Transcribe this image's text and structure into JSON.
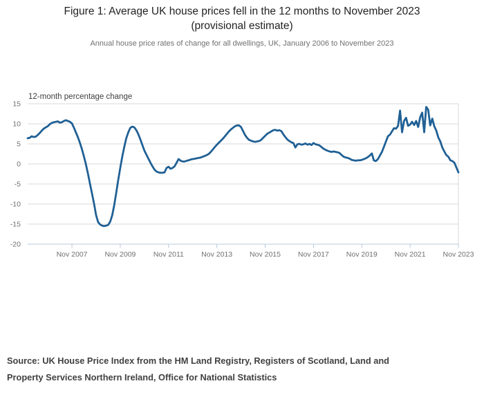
{
  "figure": {
    "title_lines": [
      "Figure 1: Average UK house prices fell in the 12 months to November 2023",
      "(provisional estimate)"
    ],
    "subtitle": "Annual house price rates of change for all dwellings, UK, January 2006 to November 2023",
    "source_lines": [
      "Source: UK House Price Index from the HM Land Registry, Registers of Scotland, Land and",
      "Property Services Northern Ireland, Office for National Statistics"
    ]
  },
  "chart_data": {
    "type": "line",
    "title": "Figure 1: Average UK house prices fell in the 12 months to November 2023 (provisional estimate)",
    "subtitle": "Annual house price rates of change for all dwellings, UK, January 2006 to November 2023",
    "ylabel": "12-month percentage change",
    "xlabel": "",
    "ylim": [
      -20,
      15
    ],
    "yticks": [
      15,
      10,
      5,
      0,
      -5,
      -10,
      -15,
      -20
    ],
    "xtick_labels": [
      "Nov 2007",
      "Nov 2009",
      "Nov 2011",
      "Nov 2013",
      "Nov 2015",
      "Nov 2017",
      "Nov 2019",
      "Nov 2021",
      "Nov 2023"
    ],
    "x_start": "Jan 2006",
    "x_end": "Nov 2023",
    "grid": true,
    "legend": "none",
    "colors": {
      "line": "#206095",
      "grid": "#d9d9d9",
      "axis": "#b9c9da",
      "tick_label": "#707070"
    },
    "series": [
      {
        "name": "12-month percentage change",
        "frequency": "monthly",
        "start": "2006-01",
        "end": "2023-11",
        "values": [
          6.4,
          6.5,
          6.9,
          6.7,
          6.8,
          7.2,
          7.7,
          8.3,
          8.8,
          9.1,
          9.4,
          9.9,
          10.2,
          10.4,
          10.5,
          10.6,
          10.3,
          10.4,
          10.7,
          10.9,
          10.7,
          10.5,
          10.1,
          9.0,
          7.8,
          6.6,
          5.2,
          3.6,
          1.8,
          -0.2,
          -2.5,
          -5.0,
          -7.5,
          -10.0,
          -12.8,
          -14.5,
          -15.1,
          -15.4,
          -15.5,
          -15.4,
          -15.2,
          -14.4,
          -12.8,
          -10.3,
          -7.2,
          -4.0,
          -1.0,
          1.8,
          4.2,
          6.4,
          7.9,
          9.0,
          9.3,
          9.1,
          8.4,
          7.4,
          6.1,
          4.7,
          3.3,
          2.3,
          1.3,
          0.3,
          -0.6,
          -1.4,
          -1.9,
          -2.1,
          -2.2,
          -2.2,
          -2.1,
          -1.0,
          -0.7,
          -1.2,
          -1.0,
          -0.6,
          0.3,
          1.2,
          0.8,
          0.6,
          0.6,
          0.8,
          0.9,
          1.1,
          1.2,
          1.3,
          1.4,
          1.5,
          1.6,
          1.8,
          2.0,
          2.2,
          2.5,
          3.0,
          3.6,
          4.2,
          4.8,
          5.3,
          5.8,
          6.3,
          6.9,
          7.5,
          8.1,
          8.6,
          9.0,
          9.4,
          9.6,
          9.6,
          9.2,
          8.2,
          7.2,
          6.5,
          6.0,
          5.8,
          5.6,
          5.5,
          5.6,
          5.7,
          6.0,
          6.5,
          7.0,
          7.5,
          7.8,
          8.1,
          8.4,
          8.5,
          8.3,
          8.4,
          8.2,
          7.4,
          6.7,
          6.1,
          5.7,
          5.4,
          5.2,
          4.1,
          4.9,
          5.0,
          4.8,
          4.9,
          5.1,
          4.8,
          5.0,
          4.7,
          5.2,
          4.9,
          4.8,
          4.6,
          4.2,
          3.8,
          3.5,
          3.3,
          3.1,
          3.0,
          3.1,
          3.0,
          2.9,
          2.7,
          2.2,
          1.8,
          1.6,
          1.5,
          1.3,
          1.0,
          0.9,
          0.8,
          0.9,
          0.9,
          1.0,
          1.2,
          1.4,
          1.7,
          2.1,
          2.6,
          0.9,
          0.7,
          1.2,
          2.1,
          3.0,
          4.3,
          5.6,
          6.9,
          7.3,
          8.1,
          8.9,
          8.8,
          9.5,
          13.3,
          7.9,
          10.7,
          11.5,
          9.5,
          9.8,
          10.5,
          9.7,
          10.7,
          9.2,
          11.6,
          12.8,
          7.9,
          14.2,
          13.5,
          9.6,
          11.3,
          9.4,
          8.3,
          6.6,
          5.6,
          4.1,
          3.1,
          2.2,
          1.8,
          0.9,
          0.7,
          0.3,
          -0.9,
          -2.1
        ]
      }
    ]
  }
}
